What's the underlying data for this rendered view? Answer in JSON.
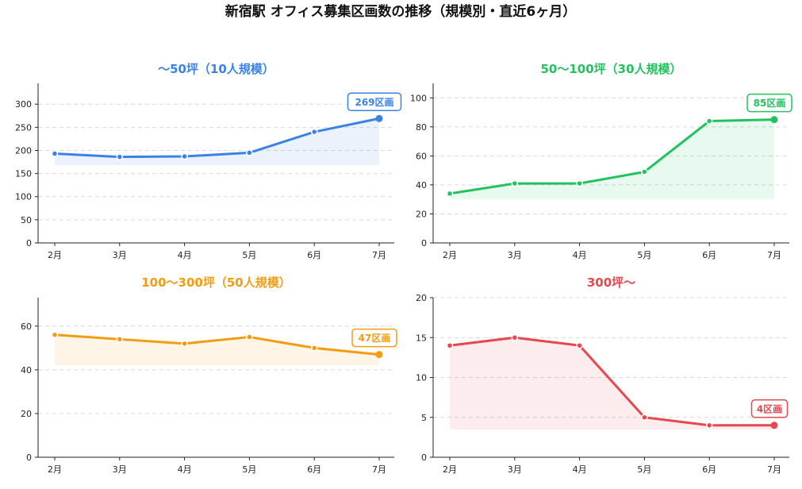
{
  "title": "新宿駅 オフィス募集区画数の推移（規模別・直近6ヶ月）",
  "chart_data": [
    {
      "type": "line",
      "title": "〜50坪（10人規模）",
      "color": "#3b82e6",
      "categories": [
        "2月",
        "3月",
        "4月",
        "5月",
        "6月",
        "7月"
      ],
      "values": [
        193,
        186,
        187,
        195,
        240,
        269
      ],
      "yticks": [
        0,
        50,
        100,
        150,
        200,
        250,
        300
      ],
      "ylim": [
        0,
        345
      ],
      "fill_base": 168,
      "badge": "269区画",
      "grid": true
    },
    {
      "type": "line",
      "title": "50〜100坪（30人規模）",
      "color": "#22c25e",
      "categories": [
        "2月",
        "3月",
        "4月",
        "5月",
        "6月",
        "7月"
      ],
      "values": [
        34,
        41,
        41,
        49,
        84,
        85
      ],
      "yticks": [
        0,
        20,
        40,
        60,
        80,
        100
      ],
      "ylim": [
        0,
        110
      ],
      "fill_base": 30,
      "badge": "85区画",
      "grid": true
    },
    {
      "type": "line",
      "title": "100〜300坪（50人規模）",
      "color": "#f39c12",
      "categories": [
        "2月",
        "3月",
        "4月",
        "5月",
        "6月",
        "7月"
      ],
      "values": [
        56,
        54,
        52,
        55,
        50,
        47
      ],
      "yticks": [
        0,
        20,
        40,
        60
      ],
      "ylim": [
        0,
        73
      ],
      "fill_base": 42,
      "badge": "47区画",
      "grid": true
    },
    {
      "type": "line",
      "title": "300坪〜",
      "color": "#e5484d",
      "categories": [
        "2月",
        "3月",
        "4月",
        "5月",
        "6月",
        "7月"
      ],
      "values": [
        14,
        15,
        14,
        5,
        4,
        4
      ],
      "yticks": [
        0,
        5,
        10,
        15,
        20
      ],
      "ylim": [
        0,
        20
      ],
      "fill_base": 3.5,
      "badge": "4区画",
      "grid": true
    }
  ]
}
